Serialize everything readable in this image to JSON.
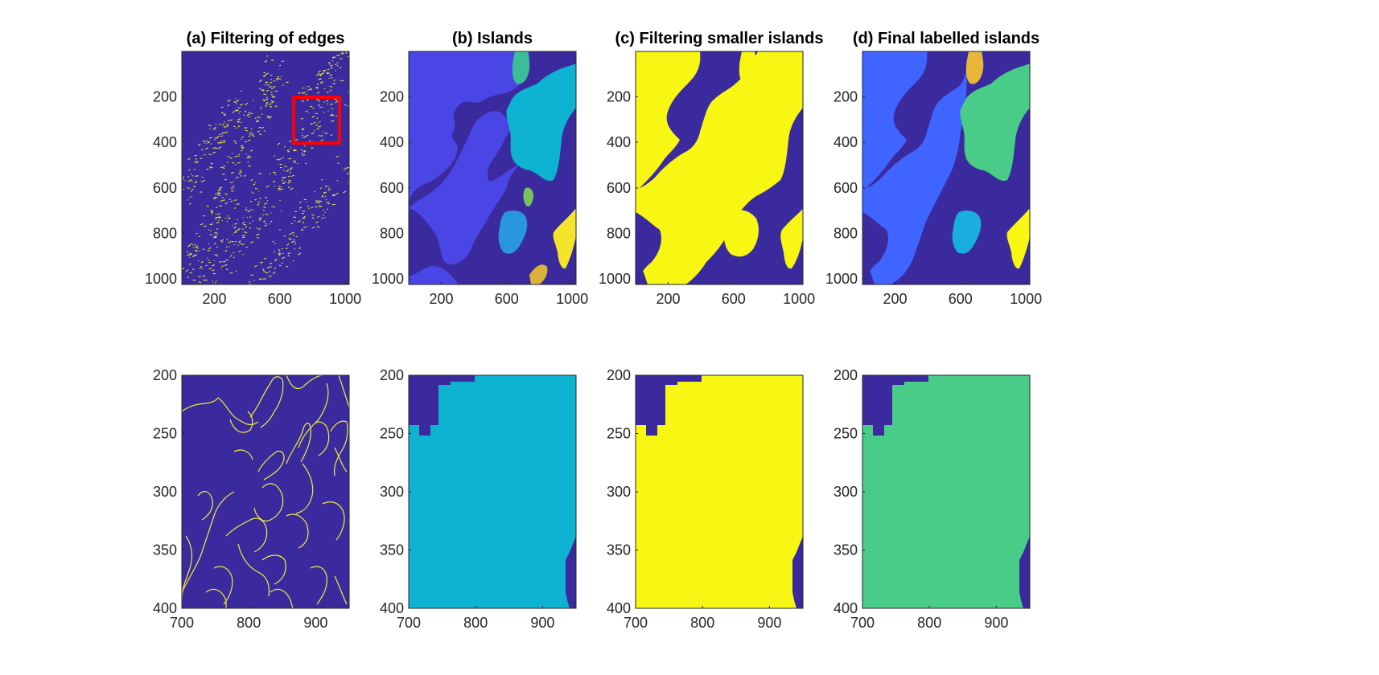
{
  "colors": {
    "background": "#3b2a9e",
    "edge": "#f0ee3a",
    "island_blue": "#4a46e6",
    "island_cyan": "#0db3d1",
    "island_teal": "#3dbd97",
    "island_azure": "#2a96e2",
    "island_green": "#77c35a",
    "island_yellow": "#f4e52c",
    "island_gold": "#d9b23a",
    "binary_yellow": "#f7f713",
    "label_blue": "#4064ff",
    "label_green": "#48cc88",
    "label_cyan": "#19aede",
    "label_gold": "#e8b73a",
    "label_yellow": "#f7f713",
    "zoom_box": "#ff0000"
  },
  "chart_data": [
    {
      "type": "heatmap",
      "id": "a-top",
      "title": "(a) Filtering of edges",
      "xlim": [
        1,
        1024
      ],
      "ylim": [
        1,
        1024
      ],
      "y_reversed": true,
      "xticks": [
        200,
        600,
        1000
      ],
      "yticks": [
        200,
        400,
        600,
        800,
        1000
      ],
      "annotation": {
        "type": "rectangle",
        "x": [
          700,
          950
        ],
        "y": [
          200,
          400
        ],
        "color": "red"
      }
    },
    {
      "type": "heatmap",
      "id": "b-top",
      "title": "(b) Islands",
      "xlim": [
        1,
        1024
      ],
      "ylim": [
        1,
        1024
      ],
      "y_reversed": true,
      "xticks": [
        200,
        600,
        1000
      ],
      "yticks": [
        200,
        400,
        600,
        800,
        1000
      ]
    },
    {
      "type": "heatmap",
      "id": "c-top",
      "title": "(c) Filtering smaller islands",
      "xlim": [
        1,
        1024
      ],
      "ylim": [
        1,
        1024
      ],
      "y_reversed": true,
      "xticks": [
        200,
        600,
        1000
      ],
      "yticks": [
        200,
        400,
        600,
        800,
        1000
      ]
    },
    {
      "type": "heatmap",
      "id": "d-top",
      "title": "(d) Final labelled islands",
      "xlim": [
        1,
        1024
      ],
      "ylim": [
        1,
        1024
      ],
      "y_reversed": true,
      "xticks": [
        200,
        600,
        1000
      ],
      "yticks": [
        200,
        400,
        600,
        800,
        1000
      ]
    },
    {
      "type": "heatmap",
      "id": "a-zoom",
      "title": "",
      "xlim": [
        700,
        950
      ],
      "ylim": [
        200,
        400
      ],
      "y_reversed": true,
      "xticks": [
        700,
        800,
        900
      ],
      "yticks": [
        200,
        250,
        300,
        350,
        400
      ]
    },
    {
      "type": "heatmap",
      "id": "b-zoom",
      "title": "",
      "xlim": [
        700,
        950
      ],
      "ylim": [
        200,
        400
      ],
      "y_reversed": true,
      "xticks": [
        700,
        800,
        900
      ],
      "yticks": [
        200,
        250,
        300,
        350,
        400
      ]
    },
    {
      "type": "heatmap",
      "id": "c-zoom",
      "title": "",
      "xlim": [
        700,
        950
      ],
      "ylim": [
        200,
        400
      ],
      "y_reversed": true,
      "xticks": [
        700,
        800,
        900
      ],
      "yticks": [
        200,
        250,
        300,
        350,
        400
      ]
    },
    {
      "type": "heatmap",
      "id": "d-zoom",
      "title": "",
      "xlim": [
        700,
        950
      ],
      "ylim": [
        200,
        400
      ],
      "y_reversed": true,
      "xticks": [
        700,
        800,
        900
      ],
      "yticks": [
        200,
        250,
        300,
        350,
        400
      ]
    }
  ]
}
